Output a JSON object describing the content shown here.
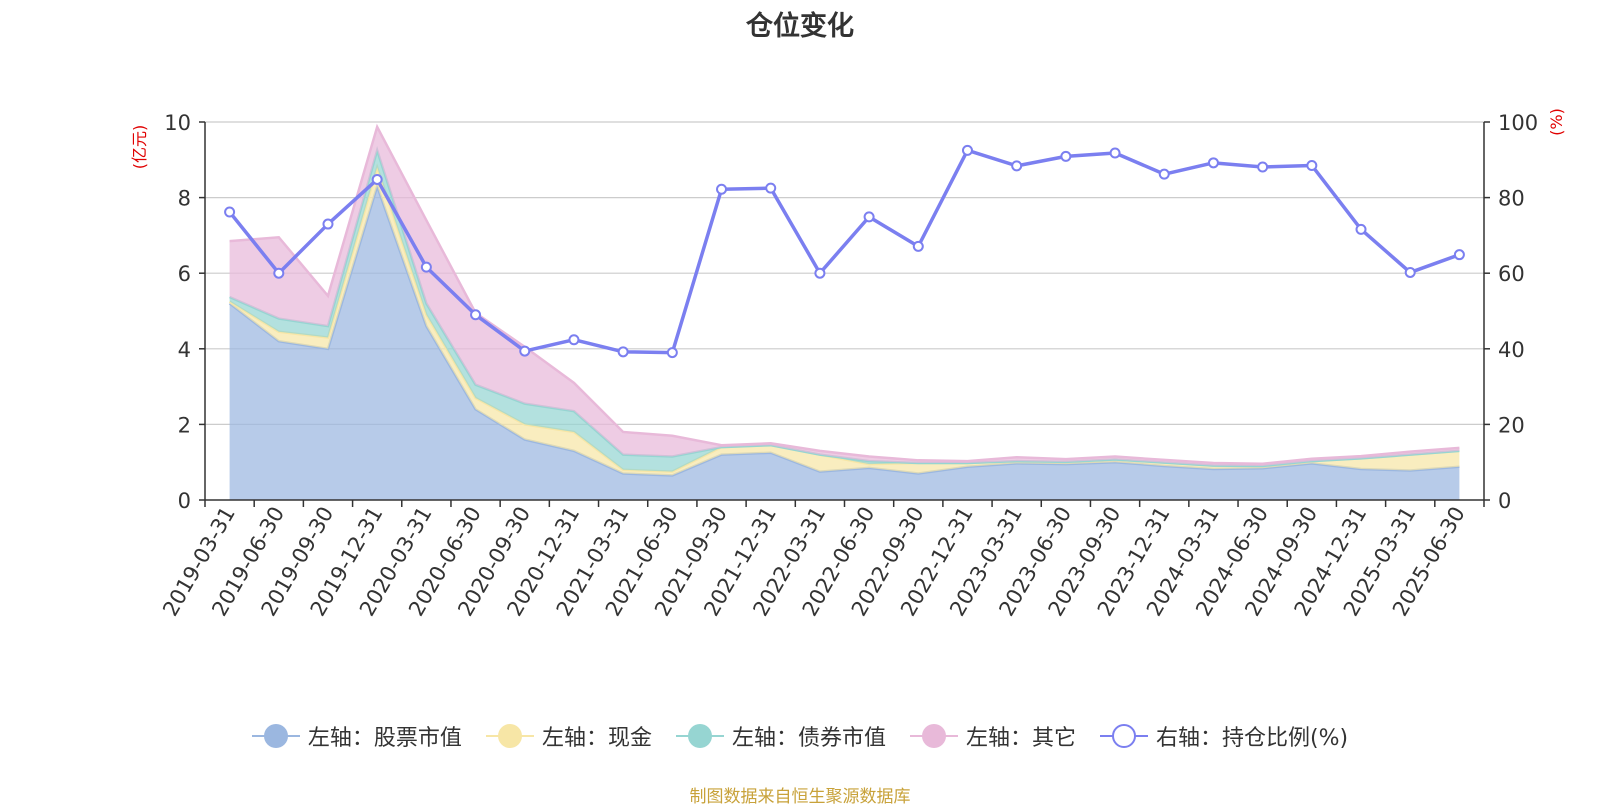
{
  "title": "仓位变化",
  "source_note": "制图数据来自恒生聚源数据库",
  "legend": [
    {
      "label": "左轴：股票市值",
      "color": "#9bb7e0",
      "type": "area"
    },
    {
      "label": "左轴：现金",
      "color": "#f7e6a6",
      "type": "area"
    },
    {
      "label": "左轴：债券市值",
      "color": "#96d5d2",
      "type": "area"
    },
    {
      "label": "左轴：其它",
      "color": "#e8b9d9",
      "type": "area"
    },
    {
      "label": "右轴：持仓比例(%)",
      "color": "#7b7ff0",
      "type": "line"
    }
  ],
  "chart_data": {
    "type": "area",
    "title": "仓位变化",
    "categories": [
      "2019-03-31",
      "2019-06-30",
      "2019-09-30",
      "2019-12-31",
      "2020-03-31",
      "2020-06-30",
      "2020-09-30",
      "2020-12-31",
      "2021-03-31",
      "2021-06-30",
      "2021-09-30",
      "2021-12-31",
      "2022-03-31",
      "2022-06-30",
      "2022-09-30",
      "2022-12-31",
      "2023-03-31",
      "2023-06-30",
      "2023-09-30",
      "2023-12-31",
      "2024-03-31",
      "2024-06-30",
      "2024-09-30",
      "2024-12-31",
      "2025-03-31",
      "2025-06-30"
    ],
    "y_left": {
      "label": "(亿元)",
      "min": 0,
      "max": 10,
      "ticks": [
        0,
        2,
        4,
        6,
        8,
        10
      ]
    },
    "y_right": {
      "label": "(%)",
      "min": 0,
      "max": 100,
      "ticks": [
        0,
        20,
        40,
        60,
        80,
        100
      ]
    },
    "stacked_series": [
      {
        "name": "左轴：股票市值",
        "color": "#9bb7e0",
        "values": [
          5.2,
          4.2,
          4.0,
          8.3,
          4.6,
          2.4,
          1.6,
          1.3,
          0.7,
          0.65,
          1.2,
          1.25,
          0.75,
          0.85,
          0.7,
          0.88,
          0.97,
          0.95,
          1.0,
          0.9,
          0.82,
          0.84,
          0.97,
          0.82,
          0.78,
          0.88
        ]
      },
      {
        "name": "左轴：现金",
        "color": "#f7e6a6",
        "values": [
          0.05,
          0.25,
          0.3,
          0.5,
          0.3,
          0.3,
          0.4,
          0.5,
          0.1,
          0.1,
          0.2,
          0.2,
          0.45,
          0.1,
          0.28,
          0.1,
          0.06,
          0.06,
          0.07,
          0.09,
          0.09,
          0.06,
          0.06,
          0.28,
          0.42,
          0.42
        ]
      },
      {
        "name": "左轴：债券市值",
        "color": "#96d5d2",
        "values": [
          0.12,
          0.35,
          0.3,
          0.45,
          0.3,
          0.35,
          0.55,
          0.55,
          0.4,
          0.4,
          0.0,
          0.0,
          0.0,
          0.08,
          0.0,
          0.0,
          0.0,
          0.0,
          0.0,
          0.0,
          0.0,
          0.0,
          0.0,
          0.0,
          0.0,
          0.0
        ]
      },
      {
        "name": "左轴：其它",
        "color": "#e8b9d9",
        "values": [
          1.48,
          2.15,
          0.8,
          0.62,
          2.2,
          1.9,
          1.5,
          0.75,
          0.6,
          0.55,
          0.05,
          0.05,
          0.1,
          0.12,
          0.07,
          0.05,
          0.1,
          0.07,
          0.08,
          0.07,
          0.07,
          0.06,
          0.06,
          0.06,
          0.08,
          0.08
        ]
      }
    ],
    "line_series": {
      "name": "右轴：持仓比例(%)",
      "color": "#7b7ff0",
      "values": [
        76.2,
        60.0,
        73.0,
        84.8,
        61.6,
        49.0,
        39.4,
        42.4,
        39.2,
        39.0,
        82.2,
        82.5,
        60.0,
        74.9,
        67.1,
        92.5,
        88.4,
        90.9,
        91.8,
        86.2,
        89.2,
        88.1,
        88.5,
        71.6,
        60.2,
        64.9
      ]
    },
    "grid": true,
    "legend_position": "bottom"
  }
}
